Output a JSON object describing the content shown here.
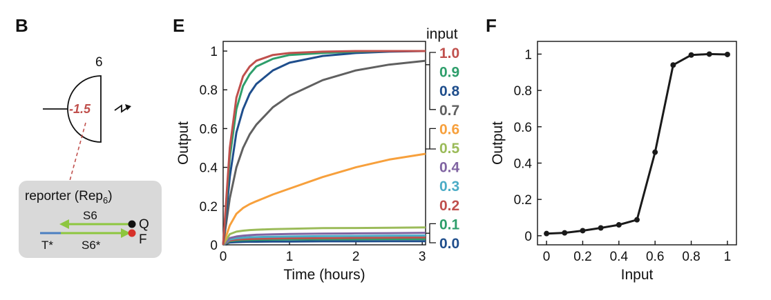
{
  "panels": {
    "B": {
      "letter": "B",
      "gate_label": "6",
      "threshold": "-1.5",
      "reporter_title": "reporter (Rep",
      "reporter_sub": "6",
      "reporter_close": ")",
      "strand_top": "S6",
      "strand_bottom": "S6*",
      "toehold": "T*",
      "quencher": "Q",
      "fluorophore": "F",
      "colors": {
        "threshold": "#c0504d",
        "box": "#d9d9d9",
        "top_strand": "#8dc63f",
        "toehold": "#4a7fc1",
        "quencher": "#111111",
        "fluorophore": "#d7312a"
      }
    },
    "E": {
      "letter": "E",
      "legend_title": "input",
      "legend": [
        {
          "label": "1.0",
          "color": "#c0504d"
        },
        {
          "label": "0.9",
          "color": "#2e9e6b"
        },
        {
          "label": "0.8",
          "color": "#1f4e8c"
        },
        {
          "label": "0.7",
          "color": "#606060"
        },
        {
          "label": "0.6",
          "color": "#f7a03c"
        },
        {
          "label": "0.5",
          "color": "#9bbb59"
        },
        {
          "label": "0.4",
          "color": "#8064a2"
        },
        {
          "label": "0.3",
          "color": "#4bacc6"
        },
        {
          "label": "0.2",
          "color": "#c0504d"
        },
        {
          "label": "0.1",
          "color": "#2e9e6b"
        },
        {
          "label": "0.0",
          "color": "#1f4e8c"
        }
      ]
    },
    "F": {
      "letter": "F"
    }
  },
  "chart_data": [
    {
      "type": "line",
      "xlabel": "Time (hours)",
      "ylabel": "Output",
      "xlim": [
        0,
        3.05
      ],
      "ylim": [
        0,
        1.05
      ],
      "xticks": [
        "0",
        "1",
        "2",
        "3"
      ],
      "yticks": [
        "0",
        "0.2",
        "0.4",
        "0.6",
        "0.8",
        "1"
      ],
      "x": [
        0,
        0.1,
        0.2,
        0.3,
        0.4,
        0.5,
        0.75,
        1.0,
        1.5,
        2.0,
        2.5,
        3.05
      ],
      "series": [
        {
          "name": "0.0",
          "color": "#1f4e8c",
          "values": [
            0,
            0.012,
            0.014,
            0.015,
            0.016,
            0.016,
            0.017,
            0.017,
            0.018,
            0.018,
            0.019,
            0.019
          ]
        },
        {
          "name": "0.1",
          "color": "#2e9e6b",
          "values": [
            0,
            0.018,
            0.022,
            0.024,
            0.025,
            0.026,
            0.027,
            0.028,
            0.029,
            0.029,
            0.03,
            0.03
          ]
        },
        {
          "name": "0.2",
          "color": "#c0504d",
          "values": [
            0,
            0.022,
            0.027,
            0.029,
            0.03,
            0.031,
            0.033,
            0.034,
            0.035,
            0.036,
            0.037,
            0.038
          ]
        },
        {
          "name": "0.3",
          "color": "#4bacc6",
          "values": [
            0,
            0.028,
            0.034,
            0.037,
            0.039,
            0.04,
            0.042,
            0.043,
            0.045,
            0.046,
            0.047,
            0.048
          ]
        },
        {
          "name": "0.4",
          "color": "#8064a2",
          "values": [
            0,
            0.035,
            0.043,
            0.047,
            0.05,
            0.052,
            0.054,
            0.056,
            0.058,
            0.059,
            0.06,
            0.062
          ]
        },
        {
          "name": "0.5",
          "color": "#9bbb59",
          "values": [
            0,
            0.055,
            0.068,
            0.073,
            0.076,
            0.078,
            0.081,
            0.083,
            0.086,
            0.087,
            0.088,
            0.09
          ]
        },
        {
          "name": "0.6",
          "color": "#f7a03c",
          "values": [
            0,
            0.1,
            0.16,
            0.19,
            0.21,
            0.225,
            0.26,
            0.29,
            0.35,
            0.4,
            0.44,
            0.47
          ]
        },
        {
          "name": "0.7",
          "color": "#606060",
          "values": [
            0,
            0.24,
            0.4,
            0.5,
            0.57,
            0.62,
            0.71,
            0.77,
            0.85,
            0.9,
            0.93,
            0.95
          ]
        },
        {
          "name": "0.8",
          "color": "#1f4e8c",
          "values": [
            0,
            0.35,
            0.58,
            0.7,
            0.78,
            0.83,
            0.9,
            0.94,
            0.975,
            0.99,
            0.997,
            1.0
          ]
        },
        {
          "name": "0.9",
          "color": "#2e9e6b",
          "values": [
            0,
            0.45,
            0.7,
            0.82,
            0.88,
            0.92,
            0.96,
            0.98,
            0.99,
            0.997,
            1.0,
            1.0
          ]
        },
        {
          "name": "1.0",
          "color": "#c0504d",
          "values": [
            0,
            0.5,
            0.76,
            0.87,
            0.92,
            0.95,
            0.98,
            0.99,
            0.997,
            1.0,
            1.0,
            1.0
          ]
        }
      ]
    },
    {
      "type": "line",
      "xlabel": "Input",
      "ylabel": "Output",
      "xlim": [
        -0.05,
        1.05
      ],
      "ylim": [
        -0.05,
        1.07
      ],
      "xticks": [
        "0",
        "0.2",
        "0.4",
        "0.6",
        "0.8",
        "1"
      ],
      "yticks": [
        "0",
        "0.2",
        "0.4",
        "0.6",
        "0.8",
        "1"
      ],
      "series": [
        {
          "color": "#1a1a1a",
          "x": [
            0,
            0.1,
            0.2,
            0.3,
            0.4,
            0.5,
            0.6,
            0.7,
            0.8,
            0.9,
            1.0
          ],
          "values": [
            0.012,
            0.016,
            0.028,
            0.043,
            0.06,
            0.088,
            0.46,
            0.94,
            0.995,
            1.0,
            0.998
          ]
        }
      ]
    }
  ]
}
